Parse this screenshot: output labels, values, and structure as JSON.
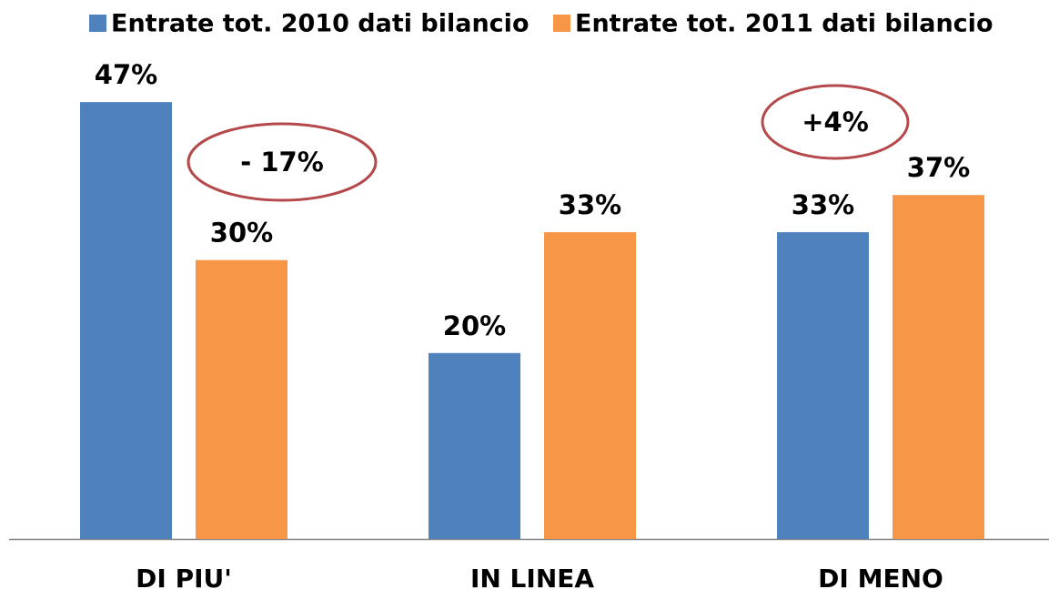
{
  "chart_data": {
    "type": "bar",
    "categories": [
      "DI PIU'",
      "IN LINEA",
      "DI MENO"
    ],
    "series": [
      {
        "name": "Entrate tot. 2010 dati bilancio",
        "color": "#4f81bd",
        "values": [
          47,
          20,
          33
        ],
        "value_labels": [
          "47%",
          "20%",
          "33%"
        ]
      },
      {
        "name": "Entrate tot. 2011 dati bilancio",
        "color": "#f79646",
        "values": [
          30,
          33,
          37
        ],
        "value_labels": [
          "30%",
          "33%",
          "37%"
        ]
      }
    ],
    "annotations": [
      "- 17%",
      "+4%"
    ],
    "annotation_color": "#b5484a",
    "legend": "top"
  }
}
